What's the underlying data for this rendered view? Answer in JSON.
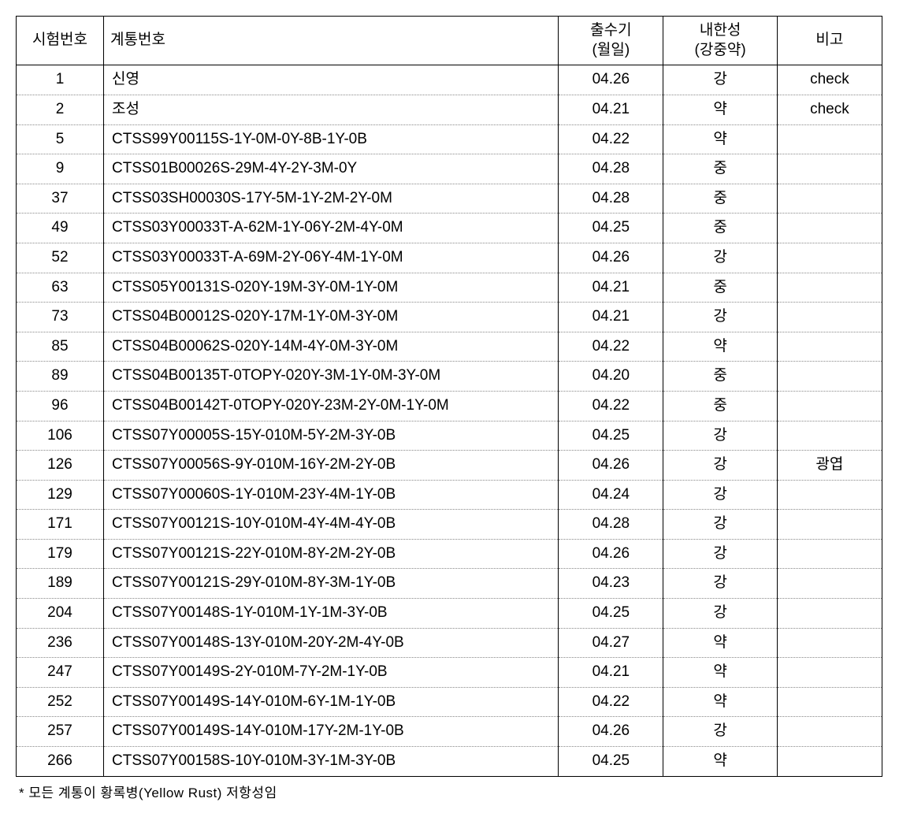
{
  "table": {
    "headers": {
      "trial_no": "시험번호",
      "line_no": "계통번호",
      "heading_date": "출수기",
      "heading_date_sub": "(월일)",
      "cold_tolerance": "내한성",
      "cold_tolerance_sub": "(강중약)",
      "note": "비고"
    },
    "rows": [
      {
        "trial": "1",
        "line": "신영",
        "date": "04.26",
        "cold": "강",
        "note": "check"
      },
      {
        "trial": "2",
        "line": "조성",
        "date": "04.21",
        "cold": "약",
        "note": "check"
      },
      {
        "trial": "5",
        "line": "CTSS99Y00115S-1Y-0M-0Y-8B-1Y-0B",
        "date": "04.22",
        "cold": "약",
        "note": ""
      },
      {
        "trial": "9",
        "line": "CTSS01B00026S-29M-4Y-2Y-3M-0Y",
        "date": "04.28",
        "cold": "중",
        "note": ""
      },
      {
        "trial": "37",
        "line": "CTSS03SH00030S-17Y-5M-1Y-2M-2Y-0M",
        "date": "04.28",
        "cold": "중",
        "note": ""
      },
      {
        "trial": "49",
        "line": "CTSS03Y00033T-A-62M-1Y-06Y-2M-4Y-0M",
        "date": "04.25",
        "cold": "중",
        "note": ""
      },
      {
        "trial": "52",
        "line": "CTSS03Y00033T-A-69M-2Y-06Y-4M-1Y-0M",
        "date": "04.26",
        "cold": "강",
        "note": ""
      },
      {
        "trial": "63",
        "line": "CTSS05Y00131S-020Y-19M-3Y-0M-1Y-0M",
        "date": "04.21",
        "cold": "중",
        "note": ""
      },
      {
        "trial": "73",
        "line": "CTSS04B00012S-020Y-17M-1Y-0M-3Y-0M",
        "date": "04.21",
        "cold": "강",
        "note": ""
      },
      {
        "trial": "85",
        "line": "CTSS04B00062S-020Y-14M-4Y-0M-3Y-0M",
        "date": "04.22",
        "cold": "약",
        "note": ""
      },
      {
        "trial": "89",
        "line": "CTSS04B00135T-0TOPY-020Y-3M-1Y-0M-3Y-0M",
        "date": "04.20",
        "cold": "중",
        "note": ""
      },
      {
        "trial": "96",
        "line": "CTSS04B00142T-0TOPY-020Y-23M-2Y-0M-1Y-0M",
        "date": "04.22",
        "cold": "중",
        "note": ""
      },
      {
        "trial": "106",
        "line": "CTSS07Y00005S-15Y-010M-5Y-2M-3Y-0B",
        "date": "04.25",
        "cold": "강",
        "note": ""
      },
      {
        "trial": "126",
        "line": "CTSS07Y00056S-9Y-010M-16Y-2M-2Y-0B",
        "date": "04.26",
        "cold": "강",
        "note": "광엽"
      },
      {
        "trial": "129",
        "line": "CTSS07Y00060S-1Y-010M-23Y-4M-1Y-0B",
        "date": "04.24",
        "cold": "강",
        "note": ""
      },
      {
        "trial": "171",
        "line": "CTSS07Y00121S-10Y-010M-4Y-4M-4Y-0B",
        "date": "04.28",
        "cold": "강",
        "note": ""
      },
      {
        "trial": "179",
        "line": "CTSS07Y00121S-22Y-010M-8Y-2M-2Y-0B",
        "date": "04.26",
        "cold": "강",
        "note": ""
      },
      {
        "trial": "189",
        "line": "CTSS07Y00121S-29Y-010M-8Y-3M-1Y-0B",
        "date": "04.23",
        "cold": "강",
        "note": ""
      },
      {
        "trial": "204",
        "line": "CTSS07Y00148S-1Y-010M-1Y-1M-3Y-0B",
        "date": "04.25",
        "cold": "강",
        "note": ""
      },
      {
        "trial": "236",
        "line": "CTSS07Y00148S-13Y-010M-20Y-2M-4Y-0B",
        "date": "04.27",
        "cold": "약",
        "note": ""
      },
      {
        "trial": "247",
        "line": "CTSS07Y00149S-2Y-010M-7Y-2M-1Y-0B",
        "date": "04.21",
        "cold": "약",
        "note": ""
      },
      {
        "trial": "252",
        "line": "CTSS07Y00149S-14Y-010M-6Y-1M-1Y-0B",
        "date": "04.22",
        "cold": "약",
        "note": ""
      },
      {
        "trial": "257",
        "line": "CTSS07Y00149S-14Y-010M-17Y-2M-1Y-0B",
        "date": "04.26",
        "cold": "강",
        "note": ""
      },
      {
        "trial": "266",
        "line": "CTSS07Y00158S-10Y-010M-3Y-1M-3Y-0B",
        "date": "04.25",
        "cold": "약",
        "note": ""
      }
    ]
  },
  "footnote": "* 모든 계통이 황록병(Yellow Rust) 저항성임",
  "styling": {
    "border_color": "#000000",
    "dotted_color": "#888888",
    "background_color": "#ffffff",
    "font_size_body": 19,
    "font_size_footnote": 17,
    "column_widths": {
      "trial": 100,
      "line": 520,
      "date": 120,
      "cold": 130,
      "note": 120
    }
  }
}
